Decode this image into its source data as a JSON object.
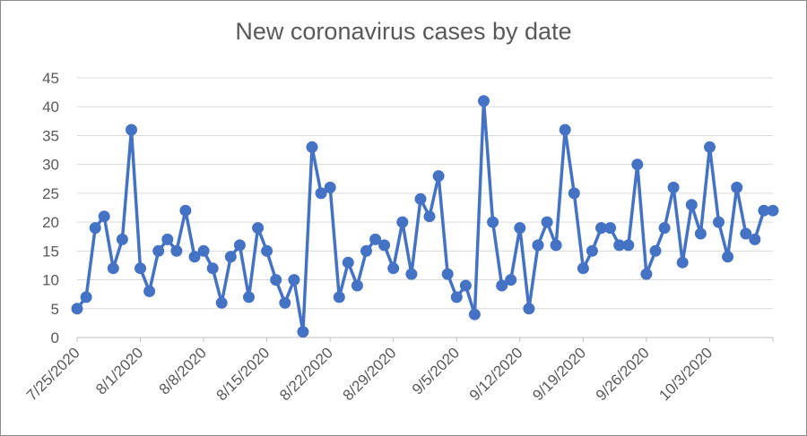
{
  "chart_data": {
    "type": "line",
    "title": "New coronavirus cases by date",
    "xlabel": "",
    "ylabel": "",
    "ylim": [
      0,
      45
    ],
    "y_ticks": [
      "0",
      "5",
      "10",
      "15",
      "20",
      "25",
      "30",
      "35",
      "40",
      "45"
    ],
    "x_ticks": [
      "7/25/2020",
      "8/1/2020",
      "8/8/2020",
      "8/15/2020",
      "8/22/2020",
      "8/29/2020",
      "9/5/2020",
      "9/12/2020",
      "9/19/2020",
      "9/26/2020",
      "10/3/2020"
    ],
    "grid": true,
    "legend": "none",
    "series_color": "#4472C4",
    "x_start": "7/25/2020",
    "x_end": "10/10/2020",
    "series": [
      {
        "x": [
          "7/25/2020",
          "7/26/2020",
          "7/27/2020",
          "7/28/2020",
          "7/29/2020",
          "7/30/2020",
          "7/31/2020",
          "8/1/2020",
          "8/2/2020",
          "8/3/2020",
          "8/4/2020",
          "8/5/2020",
          "8/6/2020",
          "8/7/2020",
          "8/8/2020",
          "8/9/2020",
          "8/10/2020",
          "8/11/2020",
          "8/12/2020",
          "8/13/2020",
          "8/14/2020",
          "8/15/2020",
          "8/16/2020",
          "8/17/2020",
          "8/18/2020",
          "8/19/2020",
          "8/20/2020",
          "8/21/2020",
          "8/22/2020",
          "8/23/2020",
          "8/24/2020",
          "8/25/2020",
          "8/26/2020",
          "8/27/2020",
          "8/28/2020",
          "8/29/2020",
          "8/30/2020",
          "8/31/2020",
          "9/1/2020",
          "9/2/2020",
          "9/3/2020",
          "9/4/2020",
          "9/5/2020",
          "9/6/2020",
          "9/7/2020",
          "9/8/2020",
          "9/9/2020",
          "9/10/2020",
          "9/11/2020",
          "9/12/2020",
          "9/13/2020",
          "9/14/2020",
          "9/15/2020",
          "9/16/2020",
          "9/17/2020",
          "9/18/2020",
          "9/19/2020",
          "9/20/2020",
          "9/21/2020",
          "9/22/2020",
          "9/23/2020",
          "9/24/2020",
          "9/25/2020",
          "9/26/2020",
          "9/27/2020",
          "9/28/2020",
          "9/29/2020",
          "9/30/2020",
          "10/1/2020",
          "10/2/2020",
          "10/3/2020",
          "10/4/2020",
          "10/5/2020",
          "10/6/2020",
          "10/7/2020",
          "10/8/2020",
          "10/9/2020",
          "10/10/2020"
        ],
        "values": [
          5,
          7,
          19,
          21,
          12,
          17,
          36,
          12,
          8,
          15,
          17,
          15,
          22,
          14,
          15,
          12,
          6,
          14,
          16,
          7,
          19,
          15,
          10,
          6,
          10,
          1,
          33,
          25,
          26,
          7,
          13,
          9,
          15,
          17,
          16,
          12,
          20,
          11,
          24,
          21,
          28,
          11,
          7,
          9,
          4,
          41,
          20,
          9,
          10,
          19,
          5,
          16,
          20,
          16,
          36,
          25,
          12,
          15,
          19,
          19,
          16,
          16,
          30,
          11,
          15,
          19,
          26,
          13,
          23,
          18,
          33,
          20,
          14,
          26,
          18,
          17,
          22,
          22
        ]
      }
    ]
  }
}
